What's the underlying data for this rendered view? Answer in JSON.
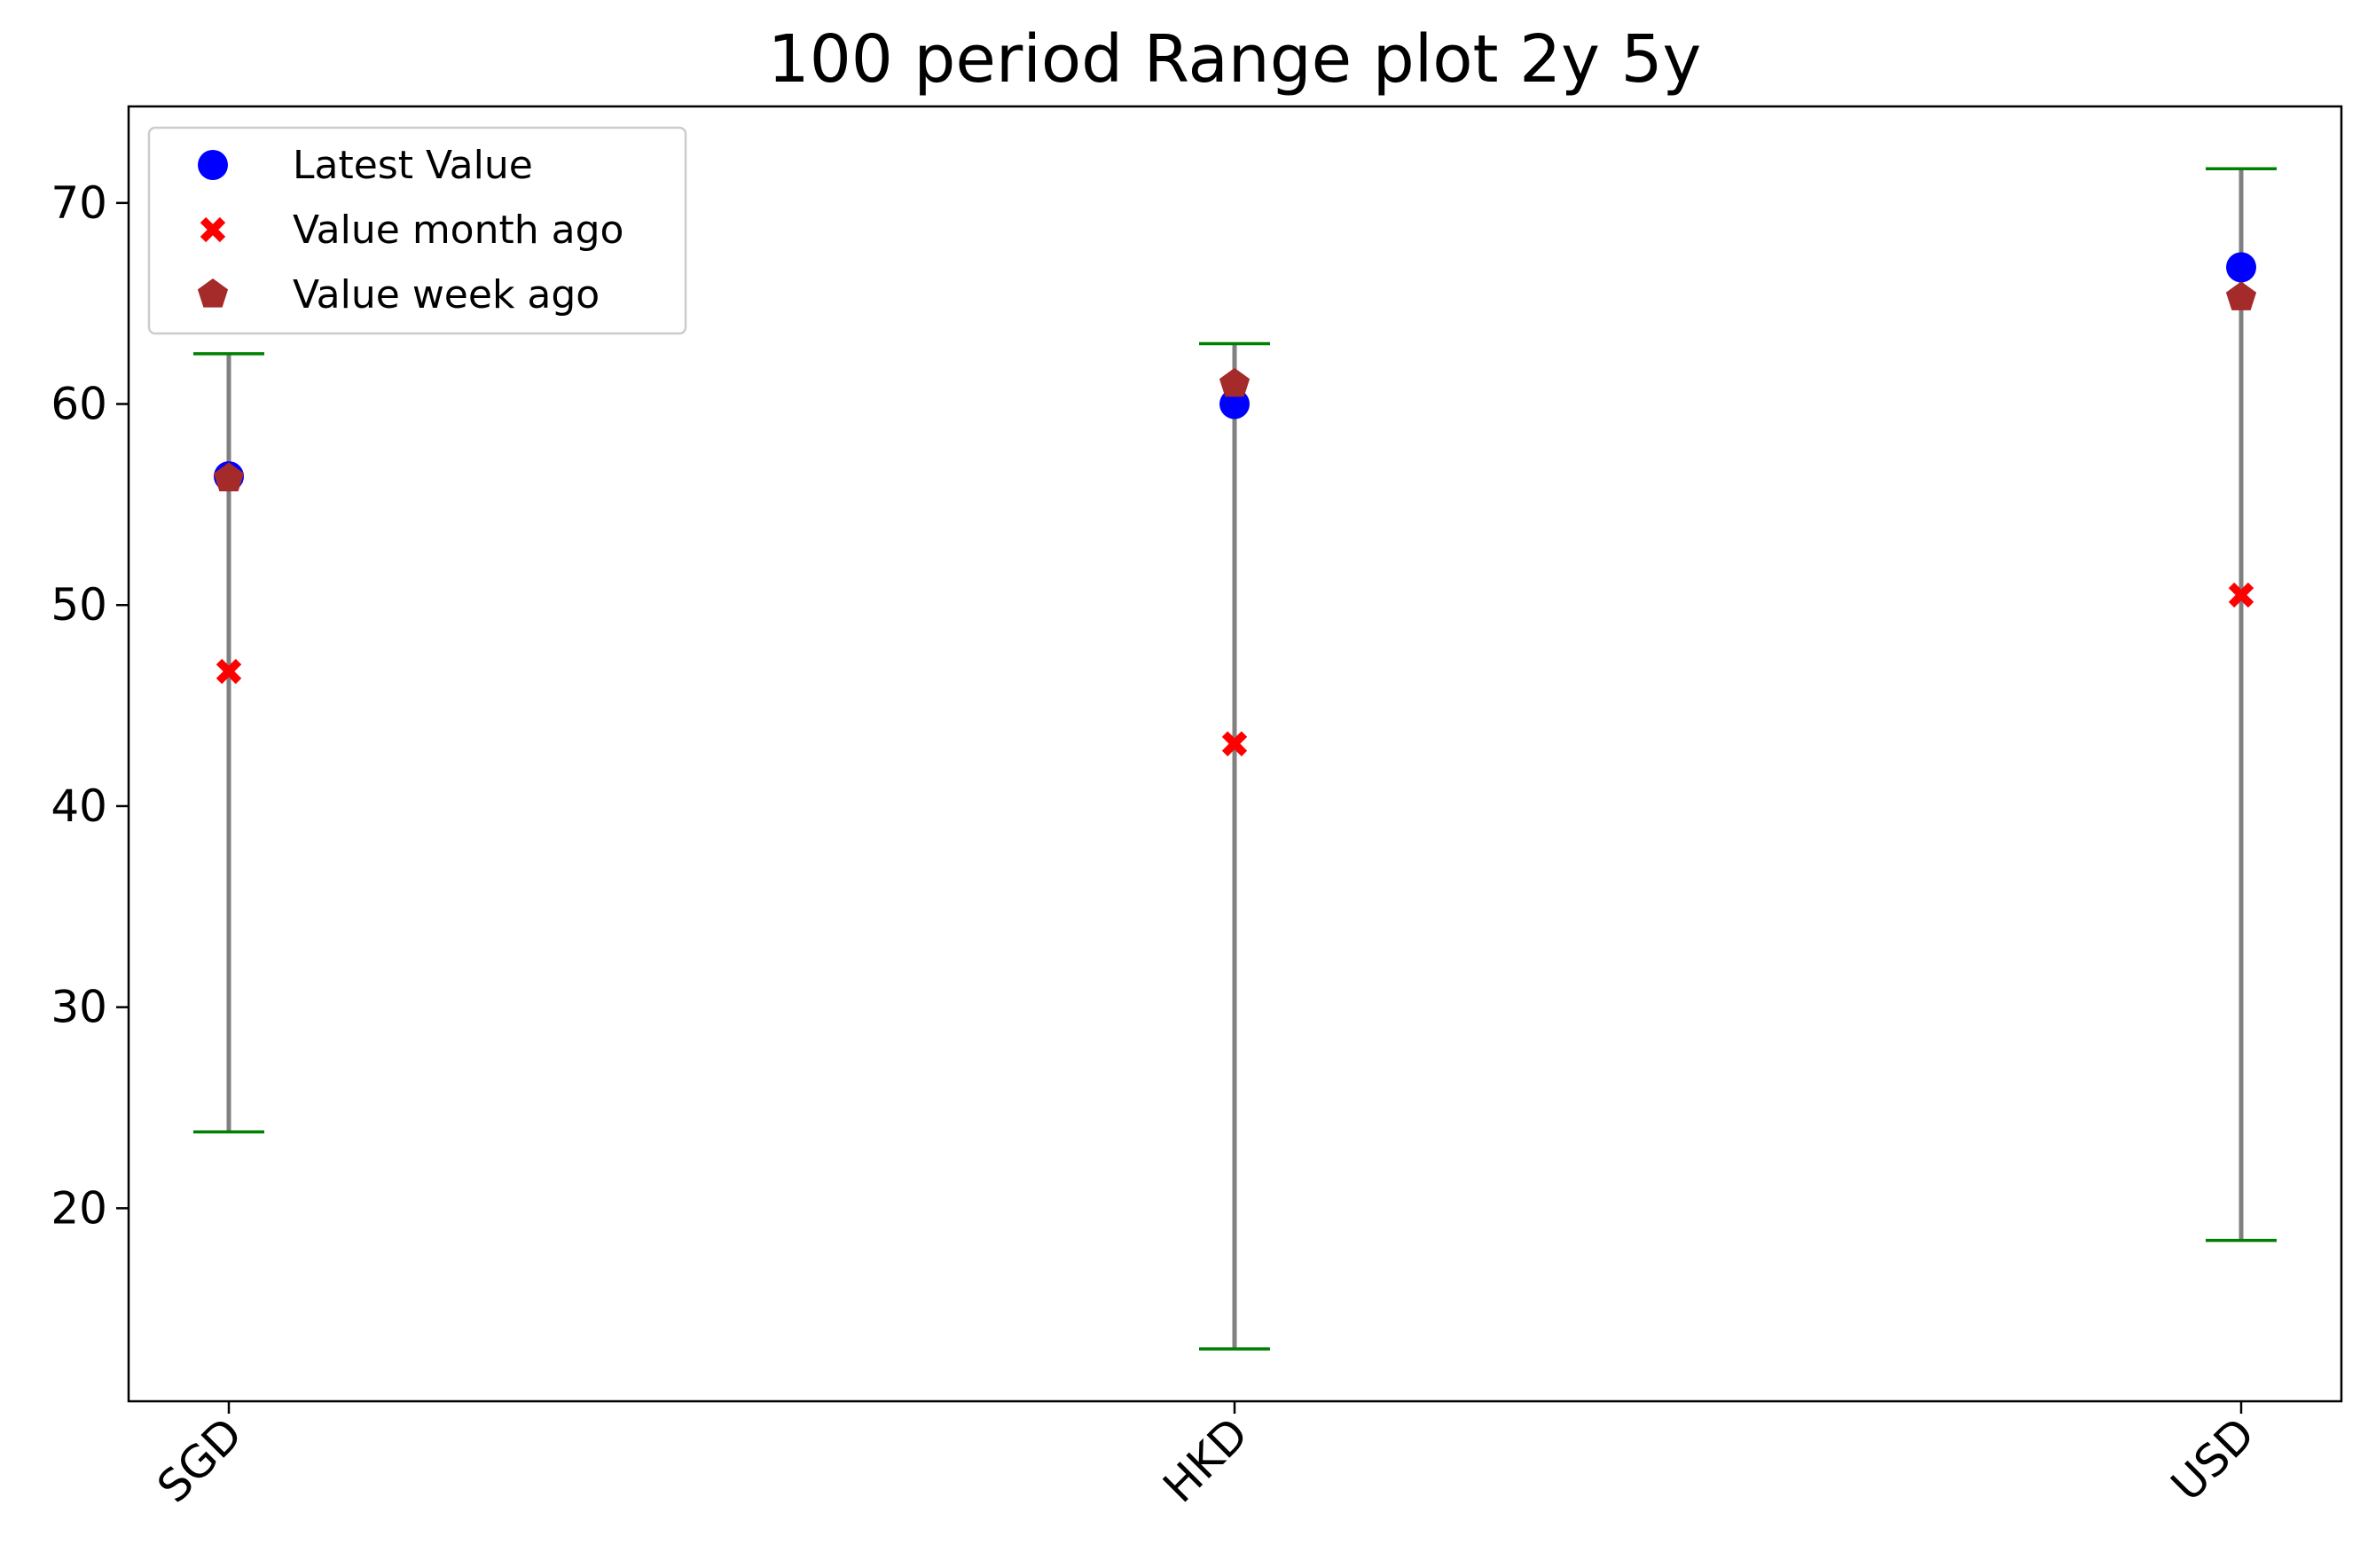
{
  "chart_data": {
    "type": "scatter",
    "title": "100 period Range plot 2y 5y",
    "xlabel": "",
    "ylabel": "",
    "categories": [
      "SGD",
      "HKD",
      "USD"
    ],
    "ylim": [
      10.4,
      74.8
    ],
    "yticks": [
      20,
      30,
      40,
      50,
      60,
      70
    ],
    "grid": false,
    "legend_position": "top-left",
    "ranges": [
      {
        "category": "SGD",
        "low": 23.8,
        "high": 62.5
      },
      {
        "category": "HKD",
        "low": 13.0,
        "high": 63.0
      },
      {
        "category": "USD",
        "low": 18.4,
        "high": 71.7
      }
    ],
    "series": [
      {
        "name": "Latest Value",
        "marker": "circle",
        "color": "#0000ff",
        "values": [
          56.4,
          60.0,
          66.8
        ]
      },
      {
        "name": "Value month ago",
        "marker": "x",
        "color": "#ff0000",
        "values": [
          46.7,
          43.1,
          50.5
        ]
      },
      {
        "name": "Value week ago",
        "marker": "pentagon",
        "color": "#a52a2a",
        "values": [
          56.3,
          61.0,
          65.3
        ]
      }
    ],
    "colors": {
      "range_line": "#808080",
      "range_cap": "#008000"
    }
  }
}
